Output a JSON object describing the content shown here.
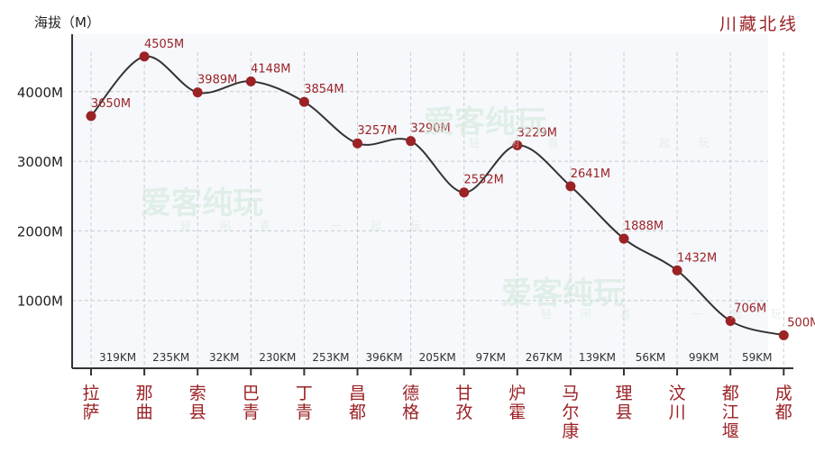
{
  "header": {
    "axis_title": "海拔（M）",
    "route_title": "川藏北线"
  },
  "watermark": {
    "brand": "爱客纯玩",
    "tagline": "轻 闲 喜 · 一 起 玩"
  },
  "colors": {
    "accent": "#9b2226",
    "line": "#333333",
    "grid": "#c8ccd0",
    "bg": "#f6f8fb"
  },
  "chart_data": {
    "type": "line",
    "title": "川藏北线",
    "ylabel": "海拔（M）",
    "ylim": [
      0,
      4600
    ],
    "yticks": [
      1000,
      2000,
      3000,
      4000
    ],
    "ytick_labels": [
      "1000M",
      "2000M",
      "3000M",
      "4000M"
    ],
    "categories": [
      "拉萨",
      "那曲",
      "索县",
      "巴青",
      "丁青",
      "昌都",
      "德格",
      "甘孜",
      "炉霍",
      "马尔康",
      "理县",
      "汶川",
      "都江堰",
      "成都"
    ],
    "values": [
      3650,
      4505,
      3989,
      4148,
      3854,
      3257,
      3290,
      2552,
      3229,
      2641,
      1888,
      1432,
      706,
      500
    ],
    "value_labels": [
      "3650M",
      "4505M",
      "3989M",
      "4148M",
      "3854M",
      "3257M",
      "3290M",
      "2552M",
      "3229M",
      "2641M",
      "1888M",
      "1432M",
      "706M",
      "500M"
    ],
    "segments": [
      "319KM",
      "235KM",
      "32KM",
      "230KM",
      "253KM",
      "396KM",
      "205KM",
      "97KM",
      "267KM",
      "139KM",
      "56KM",
      "99KM",
      "59KM"
    ],
    "grid": true
  }
}
